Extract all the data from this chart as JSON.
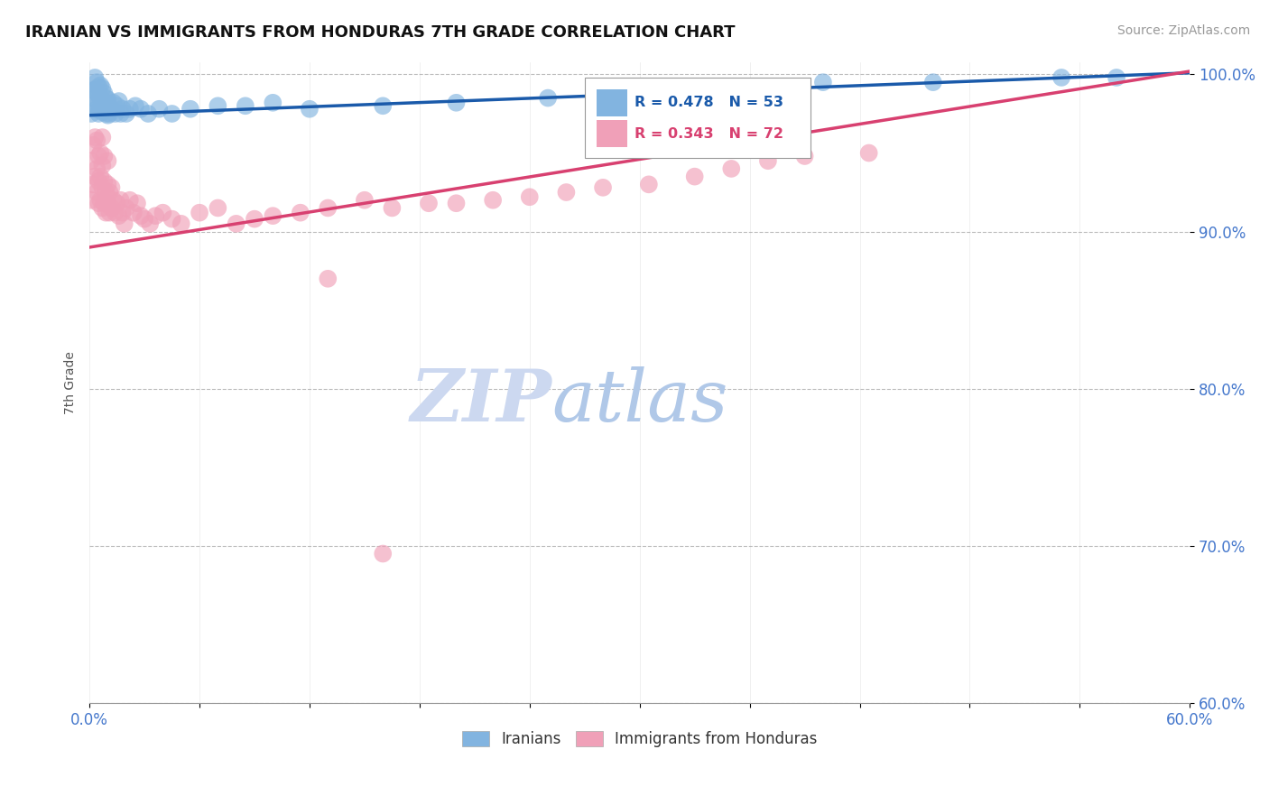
{
  "title": "IRANIAN VS IMMIGRANTS FROM HONDURAS 7TH GRADE CORRELATION CHART",
  "source_text": "Source: ZipAtlas.com",
  "ylabel": "7th Grade",
  "xlim": [
    0.0,
    0.6
  ],
  "ylim": [
    0.6,
    1.008
  ],
  "xticks": [
    0.0,
    0.06,
    0.12,
    0.18,
    0.24,
    0.3,
    0.36,
    0.42,
    0.48,
    0.54,
    0.6
  ],
  "xtick_labels": [
    "0.0%",
    "",
    "",
    "",
    "",
    "",
    "",
    "",
    "",
    "",
    "60.0%"
  ],
  "ytick_labels": [
    "60.0%",
    "70.0%",
    "80.0%",
    "90.0%",
    "100.0%"
  ],
  "yticks": [
    0.6,
    0.7,
    0.8,
    0.9,
    1.0
  ],
  "blue_color": "#82b4e0",
  "pink_color": "#f0a0b8",
  "blue_line_color": "#1a5aaa",
  "pink_line_color": "#d84070",
  "watermark_zip_color": "#ccd8f0",
  "watermark_atlas_color": "#b0c8e8",
  "legend_r_blue": "R = 0.478",
  "legend_n_blue": "N = 53",
  "legend_r_pink": "R = 0.343",
  "legend_n_pink": "N = 72",
  "iranians_label": "Iranians",
  "honduras_label": "Immigrants from Honduras",
  "blue_line_x0": 0.0,
  "blue_line_y0": 0.974,
  "blue_line_x1": 0.6,
  "blue_line_y1": 1.001,
  "pink_line_x0": 0.0,
  "pink_line_y0": 0.89,
  "pink_line_x1": 0.6,
  "pink_line_y1": 1.002,
  "blue_scatter_x": [
    0.001,
    0.002,
    0.002,
    0.003,
    0.003,
    0.003,
    0.004,
    0.004,
    0.004,
    0.005,
    0.005,
    0.005,
    0.006,
    0.006,
    0.006,
    0.007,
    0.007,
    0.007,
    0.008,
    0.008,
    0.009,
    0.009,
    0.01,
    0.01,
    0.011,
    0.012,
    0.013,
    0.014,
    0.015,
    0.016,
    0.017,
    0.018,
    0.02,
    0.022,
    0.025,
    0.028,
    0.032,
    0.038,
    0.045,
    0.055,
    0.07,
    0.085,
    0.1,
    0.12,
    0.16,
    0.2,
    0.25,
    0.31,
    0.36,
    0.4,
    0.46,
    0.53,
    0.56
  ],
  "blue_scatter_y": [
    0.975,
    0.98,
    0.99,
    0.985,
    0.99,
    0.998,
    0.978,
    0.988,
    0.995,
    0.975,
    0.982,
    0.992,
    0.978,
    0.985,
    0.993,
    0.976,
    0.984,
    0.991,
    0.977,
    0.988,
    0.975,
    0.985,
    0.974,
    0.984,
    0.975,
    0.978,
    0.982,
    0.975,
    0.98,
    0.983,
    0.975,
    0.978,
    0.975,
    0.978,
    0.98,
    0.978,
    0.975,
    0.978,
    0.975,
    0.978,
    0.98,
    0.98,
    0.982,
    0.978,
    0.98,
    0.982,
    0.985,
    0.99,
    0.992,
    0.995,
    0.995,
    0.998,
    0.998
  ],
  "pink_scatter_x": [
    0.001,
    0.001,
    0.002,
    0.002,
    0.003,
    0.003,
    0.004,
    0.004,
    0.004,
    0.005,
    0.005,
    0.005,
    0.006,
    0.006,
    0.006,
    0.007,
    0.007,
    0.007,
    0.007,
    0.008,
    0.008,
    0.008,
    0.009,
    0.009,
    0.01,
    0.01,
    0.01,
    0.011,
    0.011,
    0.012,
    0.012,
    0.013,
    0.014,
    0.015,
    0.016,
    0.017,
    0.018,
    0.019,
    0.02,
    0.022,
    0.024,
    0.026,
    0.028,
    0.03,
    0.033,
    0.036,
    0.04,
    0.045,
    0.05,
    0.06,
    0.07,
    0.08,
    0.09,
    0.1,
    0.115,
    0.13,
    0.15,
    0.165,
    0.185,
    0.2,
    0.22,
    0.24,
    0.26,
    0.28,
    0.305,
    0.33,
    0.35,
    0.37,
    0.39,
    0.425,
    0.13,
    0.16
  ],
  "pink_scatter_y": [
    0.92,
    0.945,
    0.93,
    0.955,
    0.935,
    0.96,
    0.925,
    0.94,
    0.958,
    0.918,
    0.932,
    0.948,
    0.92,
    0.935,
    0.95,
    0.915,
    0.928,
    0.942,
    0.96,
    0.918,
    0.932,
    0.948,
    0.912,
    0.925,
    0.918,
    0.93,
    0.945,
    0.912,
    0.925,
    0.915,
    0.928,
    0.92,
    0.912,
    0.918,
    0.91,
    0.92,
    0.912,
    0.905,
    0.915,
    0.92,
    0.912,
    0.918,
    0.91,
    0.908,
    0.905,
    0.91,
    0.912,
    0.908,
    0.905,
    0.912,
    0.915,
    0.905,
    0.908,
    0.91,
    0.912,
    0.915,
    0.92,
    0.915,
    0.918,
    0.918,
    0.92,
    0.922,
    0.925,
    0.928,
    0.93,
    0.935,
    0.94,
    0.945,
    0.948,
    0.95,
    0.87,
    0.695
  ]
}
